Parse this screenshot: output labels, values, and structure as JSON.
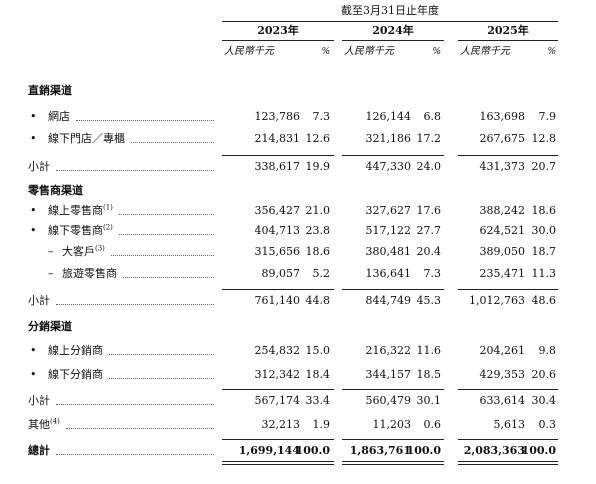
{
  "header": {
    "period": "截至3月31日止年度",
    "years": [
      "2023年",
      "2024年",
      "2025年"
    ],
    "unit_amount": "人民幣千元",
    "unit_pct": "%"
  },
  "sections": [
    {
      "title": "直銷渠道",
      "rows": [
        {
          "bullet": "•",
          "label": "網店",
          "note": "",
          "v": [
            "123,786",
            "7.3",
            "126,144",
            "6.8",
            "163,698",
            "7.9"
          ]
        },
        {
          "bullet": "•",
          "label": "線下門店／專櫃",
          "note": "",
          "v": [
            "214,831",
            "12.6",
            "321,186",
            "17.2",
            "267,675",
            "12.8"
          ]
        }
      ],
      "subtotal": {
        "label": "小計",
        "v": [
          "338,617",
          "19.9",
          "447,330",
          "24.0",
          "431,373",
          "20.7"
        ]
      }
    },
    {
      "title": "零售商渠道",
      "rows": [
        {
          "bullet": "•",
          "label": "線上零售商",
          "note": "(1)",
          "v": [
            "356,427",
            "21.0",
            "327,627",
            "17.6",
            "388,242",
            "18.6"
          ]
        },
        {
          "bullet": "•",
          "label": "線下零售商",
          "note": "(2)",
          "v": [
            "404,713",
            "23.8",
            "517,122",
            "27.7",
            "624,521",
            "30.0"
          ]
        },
        {
          "bullet": "–",
          "label": "大客戶",
          "note": "(3)",
          "sub": true,
          "v": [
            "315,656",
            "18.6",
            "380,481",
            "20.4",
            "389,050",
            "18.7"
          ]
        },
        {
          "bullet": "–",
          "label": "旅遊零售商",
          "note": "",
          "sub": true,
          "v": [
            "89,057",
            "5.2",
            "136,641",
            "7.3",
            "235,471",
            "11.3"
          ]
        }
      ],
      "subtotal": {
        "label": "小計",
        "v": [
          "761,140",
          "44.8",
          "844,749",
          "45.3",
          "1,012,763",
          "48.6"
        ]
      }
    },
    {
      "title": "分銷渠道",
      "rows": [
        {
          "bullet": "•",
          "label": "線上分銷商",
          "note": "",
          "v": [
            "254,832",
            "15.0",
            "216,322",
            "11.6",
            "204,261",
            "9.8"
          ]
        },
        {
          "bullet": "•",
          "label": "線下分銷商",
          "note": "",
          "v": [
            "312,342",
            "18.4",
            "344,157",
            "18.5",
            "429,353",
            "20.6"
          ]
        }
      ],
      "subtotal": {
        "label": "小計",
        "v": [
          "567,174",
          "33.4",
          "560,479",
          "30.1",
          "633,614",
          "30.4"
        ]
      }
    }
  ],
  "other": {
    "label": "其他",
    "note": "(4)",
    "v": [
      "32,213",
      "1.9",
      "11,203",
      "0.6",
      "5,613",
      "0.3"
    ]
  },
  "total": {
    "label": "總計",
    "v": [
      "1,699,144",
      "100.0",
      "1,863,761",
      "100.0",
      "2,083,363",
      "100.0"
    ]
  }
}
